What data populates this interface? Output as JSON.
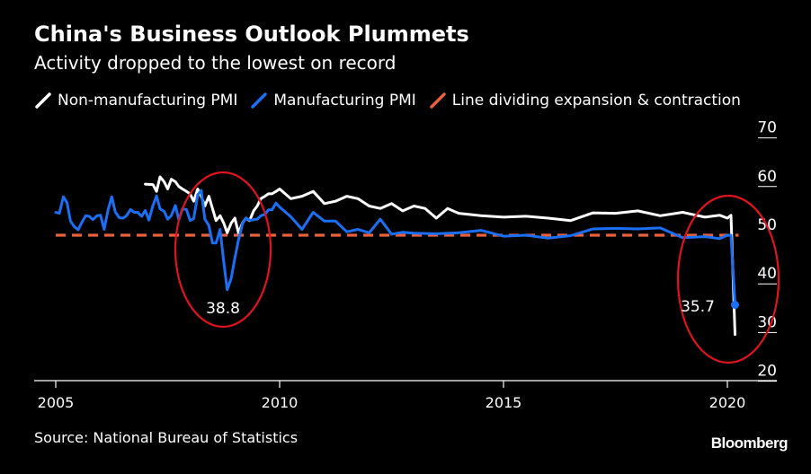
{
  "title": "China's Business Outlook Plummets",
  "subtitle": "Activity dropped to the lowest on record",
  "source": "Source: National Bureau of Statistics",
  "brand": "Bloomberg",
  "colors": {
    "background": "#000000",
    "non_manufacturing": "#ffffff",
    "manufacturing": "#1a6ff5",
    "threshold": "#e8603c",
    "highlight_circle": "#e0141e"
  },
  "legend": [
    {
      "label": "Non-manufacturing PMI",
      "color": "#ffffff",
      "icon": "diagonal-line-icon"
    },
    {
      "label": "Manufacturing PMI",
      "color": "#1a6ff5",
      "icon": "diagonal-line-icon"
    },
    {
      "label": "Line dividing expansion & contraction",
      "color": "#e8603c",
      "icon": "diagonal-line-icon"
    }
  ],
  "chart_data": {
    "type": "line",
    "title": "China's Business Outlook Plummets",
    "subtitle": "Activity dropped to the lowest on record",
    "x_axis": {
      "range": [
        2005.0,
        2021.0
      ],
      "ticks": [
        2005,
        2010,
        2015,
        2020
      ],
      "tick_labels": [
        "2005",
        "2010",
        "2015",
        "2020"
      ]
    },
    "y_axis": {
      "range": [
        20,
        70
      ],
      "ticks": [
        20,
        30,
        40,
        50,
        60,
        70
      ],
      "tick_labels": [
        "20",
        "30",
        "40",
        "50",
        "60",
        "70"
      ],
      "position": "right"
    },
    "grid": "horizontal",
    "legend_position": "top",
    "reference_line": {
      "name": "Line dividing expansion & contraction",
      "value": 50,
      "style": "dashed"
    },
    "series": [
      {
        "name": "Non-manufacturing PMI",
        "x": [
          2007.0,
          2007.17,
          2007.25,
          2007.33,
          2007.42,
          2007.5,
          2007.58,
          2007.67,
          2007.75,
          2007.83,
          2007.92,
          2008.0,
          2008.08,
          2008.17,
          2008.25,
          2008.33,
          2008.42,
          2008.5,
          2008.58,
          2008.67,
          2008.75,
          2008.83,
          2008.92,
          2009.0,
          2009.08,
          2009.17,
          2009.25,
          2009.33,
          2009.42,
          2009.5,
          2009.58,
          2009.67,
          2009.75,
          2009.83,
          2009.92,
          2010.0,
          2010.25,
          2010.5,
          2010.75,
          2011.0,
          2011.25,
          2011.5,
          2011.75,
          2012.0,
          2012.25,
          2012.5,
          2012.75,
          2013.0,
          2013.25,
          2013.5,
          2013.75,
          2014.0,
          2014.5,
          2015.0,
          2015.5,
          2016.0,
          2016.5,
          2017.0,
          2017.5,
          2018.0,
          2018.5,
          2019.0,
          2019.5,
          2019.83,
          2020.0,
          2020.08,
          2020.17
        ],
        "values": [
          60.5,
          60.4,
          59.0,
          62.0,
          61.0,
          59.5,
          61.5,
          61.0,
          60.0,
          59.5,
          59.0,
          58.5,
          57.0,
          59.5,
          58.0,
          56.0,
          58.0,
          55.5,
          53.0,
          54.0,
          52.5,
          50.5,
          52.5,
          53.5,
          50.5,
          52.5,
          53.5,
          53.0,
          55.0,
          56.0,
          57.5,
          58.0,
          58.5,
          58.5,
          59.0,
          59.5,
          57.5,
          58.0,
          59.0,
          56.5,
          57.0,
          58.0,
          57.5,
          56.0,
          55.5,
          56.5,
          55.0,
          56.0,
          55.5,
          53.5,
          55.5,
          54.5,
          54.0,
          53.7,
          53.9,
          53.5,
          53.0,
          54.6,
          54.5,
          55.0,
          54.0,
          54.7,
          53.7,
          54.1,
          53.5,
          54.1,
          29.6
        ]
      },
      {
        "name": "Manufacturing PMI",
        "x": [
          2005.0,
          2005.08,
          2005.17,
          2005.25,
          2005.33,
          2005.42,
          2005.5,
          2005.58,
          2005.67,
          2005.75,
          2005.83,
          2005.92,
          2006.0,
          2006.08,
          2006.17,
          2006.25,
          2006.33,
          2006.42,
          2006.5,
          2006.58,
          2006.67,
          2006.75,
          2006.83,
          2006.92,
          2007.0,
          2007.08,
          2007.17,
          2007.25,
          2007.33,
          2007.42,
          2007.5,
          2007.58,
          2007.67,
          2007.75,
          2007.83,
          2007.92,
          2008.0,
          2008.08,
          2008.17,
          2008.25,
          2008.33,
          2008.42,
          2008.5,
          2008.58,
          2008.67,
          2008.75,
          2008.83,
          2008.92,
          2009.0,
          2009.08,
          2009.17,
          2009.25,
          2009.33,
          2009.42,
          2009.5,
          2009.58,
          2009.67,
          2009.75,
          2009.83,
          2009.92,
          2010.0,
          2010.25,
          2010.5,
          2010.75,
          2011.0,
          2011.25,
          2011.5,
          2011.75,
          2012.0,
          2012.25,
          2012.5,
          2012.75,
          2013.0,
          2013.5,
          2014.0,
          2014.5,
          2015.0,
          2015.5,
          2016.0,
          2016.5,
          2017.0,
          2017.5,
          2018.0,
          2018.5,
          2019.0,
          2019.5,
          2019.83,
          2020.0,
          2020.08,
          2020.17
        ],
        "values": [
          54.7,
          54.5,
          57.9,
          56.7,
          52.9,
          51.7,
          51.1,
          52.6,
          54.0,
          53.9,
          53.2,
          54.0,
          54.1,
          51.2,
          55.3,
          57.9,
          54.8,
          53.6,
          53.5,
          54.0,
          55.3,
          54.7,
          54.7,
          53.9,
          55.1,
          53.1,
          56.1,
          58.1,
          55.4,
          54.9,
          53.3,
          54.0,
          56.1,
          53.2,
          55.4,
          55.3,
          53.0,
          53.4,
          58.3,
          59.2,
          53.3,
          52.0,
          48.4,
          48.4,
          51.2,
          44.6,
          38.8,
          41.2,
          45.3,
          49.0,
          52.4,
          53.5,
          53.1,
          53.2,
          53.3,
          54.0,
          54.3,
          55.2,
          55.2,
          56.6,
          55.8,
          53.8,
          51.2,
          54.7,
          52.9,
          52.9,
          50.7,
          51.2,
          50.5,
          53.3,
          50.2,
          50.6,
          50.4,
          50.3,
          50.5,
          51.0,
          49.8,
          50.0,
          49.4,
          49.9,
          51.3,
          51.4,
          51.3,
          51.5,
          49.5,
          49.7,
          49.3,
          50.0,
          50.0,
          35.7
        ]
      }
    ],
    "annotations": [
      {
        "label": "38.8",
        "x": 2008.83,
        "y": 38.8
      },
      {
        "label": "35.7",
        "x": 2020.17,
        "y": 35.7
      }
    ],
    "highlights": [
      {
        "name": "2008-2009 financial crisis trough",
        "center_x": 2008.83,
        "center_y": 44.5
      },
      {
        "name": "2020 outbreak collapse",
        "center_x": 2020.17,
        "center_y": 39
      }
    ]
  }
}
